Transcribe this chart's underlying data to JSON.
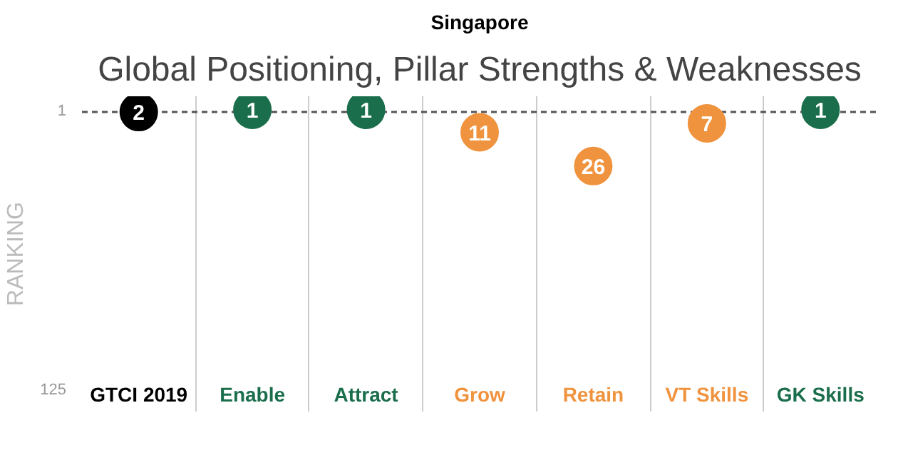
{
  "chart_data": {
    "type": "scatter",
    "title": "Singapore",
    "subtitle": "Global Positioning, Pillar Strengths & Weaknesses",
    "ylabel": "RANKING",
    "categories": [
      "GTCI 2019",
      "Enable",
      "Attract",
      "Grow",
      "Retain",
      "VT Skills",
      "GK Skills"
    ],
    "values": [
      2,
      1,
      1,
      11,
      26,
      7,
      1
    ],
    "colors": [
      "#000000",
      "#1b6e4b",
      "#1b6e4b",
      "#f0933e",
      "#f0933e",
      "#f0933e",
      "#1b6e4b"
    ],
    "ylim": [
      135,
      -5
    ],
    "yticks": [
      1,
      125
    ],
    "data_labels": true,
    "grid": "x",
    "marker": "circle",
    "ref_lines": [
      {
        "axis": "y",
        "value": 2,
        "line_style": "dashed",
        "color": "#555555"
      }
    ]
  }
}
